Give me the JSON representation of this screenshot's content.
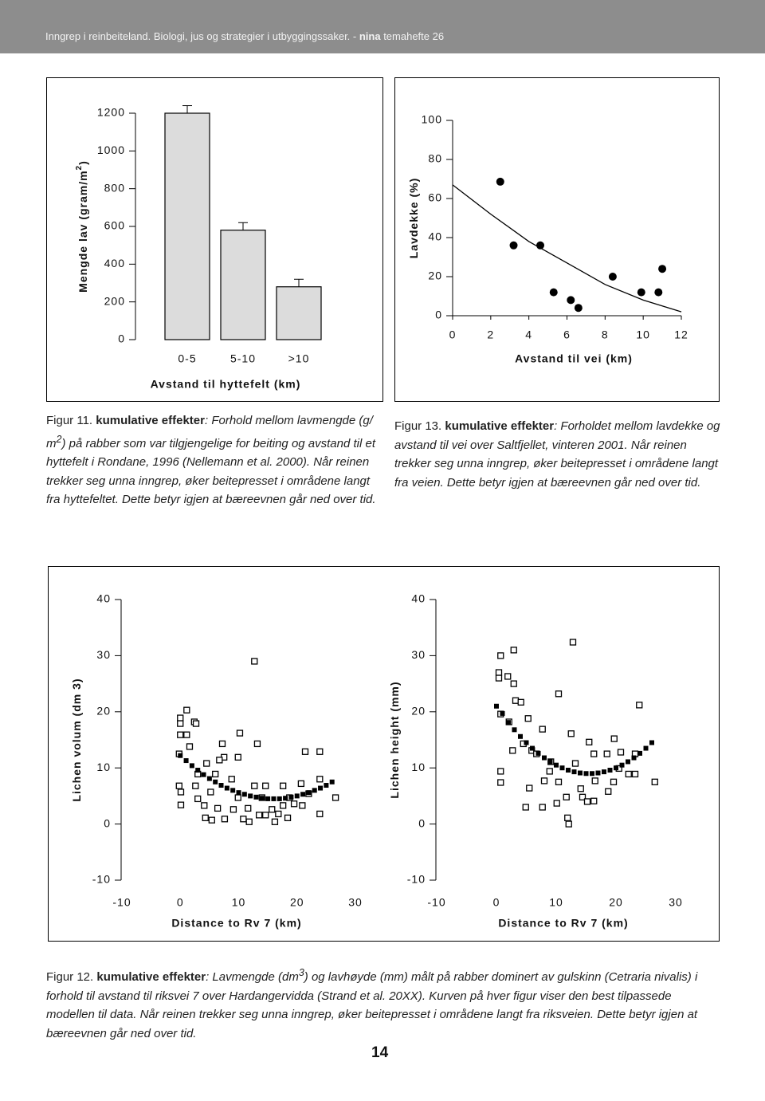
{
  "header": [
    "Inngrep i reinbeiteland. Biologi, jus og strategier i utbyggingssaker. - ",
    "nina",
    " temahefte 26"
  ],
  "captions": [
    [
      "Figur 11.",
      " kumulative effekter",
      ": Forhold mellom lavmengde (g/ m",
      "2",
      ") på rabber som var tilgjengelige for beiting og avstand til et hyttefelt i Rondane, 1996 (Nellemann et al. 2000). Når reinen trekker seg unna inngrep, øker beitepresset i områdene langt fra hyttefeltet. Dette betyr igjen at bæreevnen går ned over tid."
    ],
    [
      "Figur 13.",
      " kumulative effekter",
      ": Forholdet mellom lavdekke og avstand til vei over Saltfjellet, vinteren 2001. Når reinen trekker seg unna inngrep, øker beitepresset i områdene langt fra veien. Dette betyr igjen at bæreevnen går ned over tid."
    ],
    [
      "Figur 12.",
      " kumulative effekter",
      ": Lavmengde (dm",
      "3",
      ") og lavhøyde (mm) målt på rabber dominert av gulskinn (Cetraria nivalis) i forhold til avstand til riksvei 7 over Hardangervidda (Strand et al. 20XX). Kurven på hver figur viser den best tilpassede modellen til data.  Når reinen trekker seg unna inngrep, øker beitepresset i områdene langt fra riksveien. Dette betyr igjen at bæreevnen går ned over tid."
    ]
  ],
  "page_number": "14",
  "chart_data": [
    {
      "type": "bar",
      "categories": [
        "0-5",
        "5-10",
        ">10"
      ],
      "values": [
        1200,
        580,
        280
      ],
      "errors": [
        40,
        40,
        40
      ],
      "color": "#dcdcdc",
      "xlabel": "Avstand til hyttefelt (km)",
      "ylabel": [
        "Mengde lav (gram/m",
        "2",
        ")"
      ],
      "ylim": [
        0,
        1200
      ],
      "yticks": [
        0,
        200,
        400,
        600,
        800,
        1000,
        1200
      ]
    },
    {
      "type": "scatter",
      "xlabel": "Avstand til vei (km)",
      "ylabel": [
        "Lavdekke (%)"
      ],
      "xlim": [
        0,
        12
      ],
      "xticks": [
        0,
        2,
        4,
        6,
        8,
        10,
        12
      ],
      "ylim": [
        0,
        100
      ],
      "yticks": [
        0,
        20,
        40,
        60,
        80,
        100
      ],
      "series": [
        {
          "marker": "circle",
          "color": "#000000",
          "x": [
            2.5,
            3.2,
            4.6,
            5.3,
            6.2,
            6.6,
            8.4,
            9.9,
            10.8,
            11.0
          ],
          "values": [
            68.6,
            36,
            36,
            12,
            8,
            4,
            20,
            12,
            12,
            24
          ]
        },
        {
          "marker": "line",
          "color": "#000000",
          "x": [
            0,
            2,
            4,
            6,
            8,
            10,
            12
          ],
          "values": [
            67,
            52,
            38,
            27,
            16,
            8,
            2
          ]
        }
      ]
    },
    {
      "type": "scatter",
      "xlabel": "Distance to Rv 7 (km)",
      "ylabel": [
        "Lichen volum (dm 3)"
      ],
      "xlim": [
        -10,
        30
      ],
      "xticks": [
        -10,
        0,
        10,
        20,
        30
      ],
      "ylim": [
        -10,
        40
      ],
      "yticks": [
        -10,
        0,
        10,
        20,
        30,
        40
      ],
      "series": [
        {
          "marker": "square",
          "color": "#000000",
          "x": [
            12.7,
            0,
            1.1,
            0,
            0,
            1.1,
            2.4,
            1.6,
            2.7,
            10.2,
            7.2,
            7.5,
            9.9,
            13.2,
            21.4,
            23.9,
            -0.2,
            4.5,
            6.7,
            -0.2,
            0.1,
            0.1,
            2.6,
            3,
            4.1,
            4.3,
            5.4,
            6.4,
            7.6,
            9.1,
            9.9,
            10.8,
            11.6,
            11.8,
            13.5,
            14,
            15.7,
            16.2,
            16.8,
            17.6,
            18.7,
            19.5,
            20.9,
            22,
            23.9,
            26.6,
            12.7,
            14.6,
            17.6,
            20.7,
            23.9,
            8.8,
            3,
            5.2,
            18.4,
            14.6,
            6
          ],
          "values": [
            29,
            18.9,
            20.3,
            17.9,
            15.9,
            15.9,
            18.2,
            13.8,
            17.9,
            16.2,
            14.3,
            11.9,
            11.9,
            14.3,
            12.9,
            12.9,
            12.5,
            10.8,
            11.4,
            6.8,
            5.7,
            3.4,
            6.8,
            4.5,
            3.3,
            1.1,
            0.7,
            2.8,
            0.9,
            2.6,
            4.7,
            0.9,
            2.8,
            0.4,
            1.6,
            4.7,
            2.6,
            0.4,
            1.8,
            3.3,
            4.7,
            3.6,
            3.3,
            5.4,
            1.8,
            4.7,
            6.8,
            6.8,
            6.8,
            7.2,
            8,
            8,
            8.9,
            5.7,
            1.1,
            1.6,
            8.9
          ]
        },
        {
          "marker": "filled-square",
          "color": "#000000",
          "x": [
            0,
            1,
            2,
            3,
            4,
            5,
            6,
            7,
            8,
            9,
            10,
            11,
            12,
            13,
            14,
            15,
            16,
            17,
            18,
            19,
            20,
            21,
            22,
            23,
            24,
            25,
            26
          ],
          "values": [
            12.2,
            11.3,
            10.4,
            9.6,
            8.8,
            8.1,
            7.5,
            6.9,
            6.4,
            6.0,
            5.6,
            5.3,
            5.0,
            4.8,
            4.6,
            4.5,
            4.5,
            4.5,
            4.6,
            4.8,
            5.0,
            5.3,
            5.6,
            6.0,
            6.4,
            6.9,
            7.5
          ]
        }
      ]
    },
    {
      "type": "scatter",
      "xlabel": "Distance to Rv 7 (km)",
      "ylabel": [
        "Lichen height (mm)"
      ],
      "xlim": [
        -10,
        30
      ],
      "xticks": [
        -10,
        0,
        10,
        20,
        30
      ],
      "ylim": [
        -10,
        40
      ],
      "yticks": [
        -10,
        0,
        10,
        20,
        30,
        40
      ],
      "series": [
        {
          "marker": "square",
          "color": "#000000",
          "x": [
            12.8,
            2.9,
            0.7,
            0.4,
            0.4,
            1.9,
            2.9,
            10.4,
            3.2,
            4.1,
            23.9,
            0.7,
            2.1,
            5.3,
            7.7,
            2.7,
            4.5,
            5.9,
            12.5,
            15.5,
            19.7,
            20.8,
            16.3,
            13.2,
            8.9,
            0.7,
            0.7,
            5.5,
            8,
            10.4,
            11.7,
            14.1,
            16.5,
            14.4,
            16.3,
            18.7,
            20.5,
            22.1,
            23.2,
            26.5,
            4.9,
            7.7,
            10.1,
            11.9,
            12.1,
            15.2,
            19.6,
            23.2,
            9.1,
            6.7,
            18.5
          ],
          "values": [
            32.4,
            31,
            30,
            27,
            26,
            26.3,
            25,
            23.2,
            22,
            21.7,
            21.2,
            19.6,
            18.2,
            18.8,
            16.9,
            13.1,
            14.3,
            13.1,
            16.1,
            14.6,
            15.2,
            12.8,
            12.5,
            10.8,
            9.4,
            9.4,
            7.4,
            6.4,
            7.7,
            7.5,
            4.8,
            6.3,
            7.7,
            4.8,
            4.1,
            5.8,
            9.9,
            8.9,
            8.9,
            7.5,
            3,
            3,
            3.7,
            1.1,
            0,
            4,
            7.5,
            12.5,
            11.1,
            12.5,
            12.5
          ]
        },
        {
          "marker": "filled-square",
          "color": "#000000",
          "x": [
            0,
            1,
            2,
            3,
            4,
            5,
            6,
            7,
            8,
            9,
            10,
            11,
            12,
            13,
            14,
            15,
            16,
            17,
            18,
            19,
            20,
            21,
            22,
            23,
            24,
            25,
            26
          ],
          "values": [
            21.0,
            19.7,
            18.1,
            16.8,
            15.6,
            14.5,
            13.5,
            12.6,
            11.8,
            11.1,
            10.5,
            10.0,
            9.6,
            9.3,
            9.1,
            9.0,
            9.0,
            9.1,
            9.3,
            9.6,
            10.0,
            10.5,
            11.1,
            11.8,
            12.6,
            13.5,
            14.5
          ]
        }
      ]
    }
  ]
}
